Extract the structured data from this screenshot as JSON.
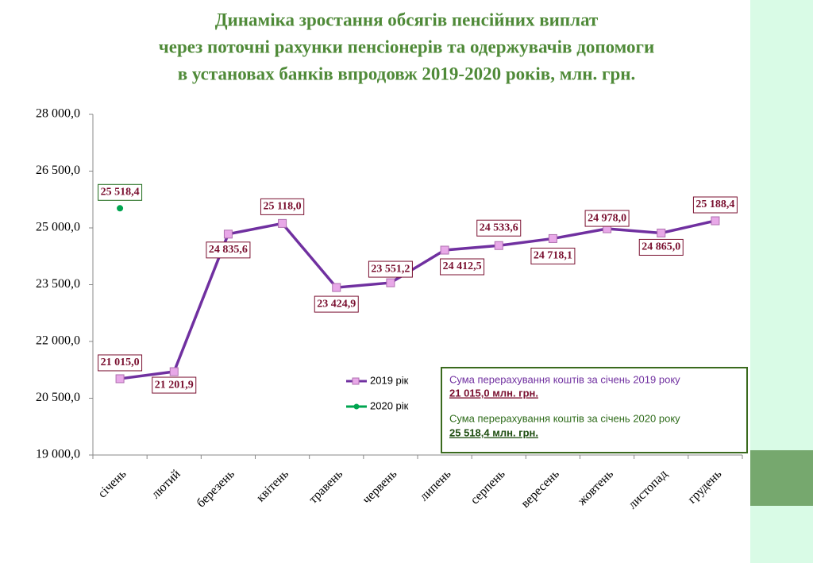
{
  "chart_data": {
    "type": "line",
    "title": [
      "Динаміка зростання обсягів пенсійних виплат",
      "через поточні рахунки пенсіонерів та одержувачів допомоги",
      "в установах банків впродовж 2019-2020 років, млн. грн."
    ],
    "categories": [
      "січень",
      "лютий",
      "березень",
      "квітень",
      "травень",
      "червень",
      "липень",
      "серпень",
      "вересень",
      "жовтень",
      "листопад",
      "грудень"
    ],
    "series": [
      {
        "name": "2019 рік",
        "color": "#7030a0",
        "marker_color": "#e8a8e8",
        "values": [
          21015.0,
          21201.9,
          24835.6,
          25118.0,
          23424.9,
          23551.2,
          24412.5,
          24533.6,
          24718.1,
          24978.0,
          24865.0,
          25188.4
        ],
        "value_labels": [
          "21 015,0",
          "21 201,9",
          "24 835,6",
          "25 118,0",
          "23 424,9",
          "23 551,2",
          "24 412,5",
          "24 533,6",
          "24 718,1",
          "24 978,0",
          "24 865,0",
          "25 188,4"
        ]
      },
      {
        "name": "2020 рік",
        "color": "#00a550",
        "marker_color": "#00a550",
        "values": [
          25518.4,
          null,
          null,
          null,
          null,
          null,
          null,
          null,
          null,
          null,
          null,
          null
        ],
        "value_labels": [
          "25 518,4",
          null,
          null,
          null,
          null,
          null,
          null,
          null,
          null,
          null,
          null,
          null
        ]
      }
    ],
    "ylim": [
      19000,
      28000
    ],
    "yticks": [
      {
        "value": 19000,
        "label": "19 000,0"
      },
      {
        "value": 20500,
        "label": "20 500,0"
      },
      {
        "value": 22000,
        "label": "22 000,0"
      },
      {
        "value": 23500,
        "label": "23 500,0"
      },
      {
        "value": 25000,
        "label": "25 000,0"
      },
      {
        "value": 26500,
        "label": "26 500,0"
      },
      {
        "value": 28000,
        "label": "28 000,0"
      }
    ],
    "grid": false,
    "annotations": [
      {
        "text": "Сума перерахування коштів  за січень 2019 року",
        "value_text": "21 015,0 млн. грн."
      },
      {
        "text": "Сума перерахування коштів  за січень 2020 року",
        "value_text": "25 518,4 млн. грн."
      }
    ]
  }
}
